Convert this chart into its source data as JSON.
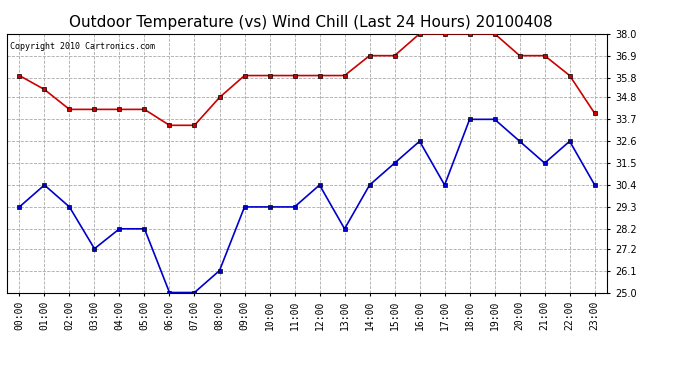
{
  "title": "Outdoor Temperature (vs) Wind Chill (Last 24 Hours) 20100408",
  "copyright": "Copyright 2010 Cartronics.com",
  "x_labels": [
    "00:00",
    "01:00",
    "02:00",
    "03:00",
    "04:00",
    "05:00",
    "06:00",
    "07:00",
    "08:00",
    "09:00",
    "10:00",
    "11:00",
    "12:00",
    "13:00",
    "14:00",
    "15:00",
    "16:00",
    "17:00",
    "18:00",
    "19:00",
    "20:00",
    "21:00",
    "22:00",
    "23:00"
  ],
  "temp_data": [
    35.9,
    35.2,
    34.2,
    34.2,
    34.2,
    34.2,
    33.4,
    33.4,
    34.8,
    35.9,
    35.9,
    35.9,
    35.9,
    35.9,
    36.9,
    36.9,
    38.0,
    38.0,
    38.0,
    38.0,
    36.9,
    36.9,
    35.9,
    34.0
  ],
  "wind_chill_data": [
    29.3,
    30.4,
    29.3,
    27.2,
    28.2,
    28.2,
    25.0,
    25.0,
    26.1,
    29.3,
    29.3,
    29.3,
    30.4,
    28.2,
    30.4,
    31.5,
    32.6,
    30.4,
    33.7,
    33.7,
    32.6,
    31.5,
    32.6,
    30.4
  ],
  "temp_color": "#cc0000",
  "wind_chill_color": "#0000cc",
  "ylim_min": 25.0,
  "ylim_max": 38.0,
  "yticks": [
    25.0,
    26.1,
    27.2,
    28.2,
    29.3,
    30.4,
    31.5,
    32.6,
    33.7,
    34.8,
    35.8,
    36.9,
    38.0
  ],
  "background_color": "#ffffff",
  "plot_bg_color": "#ffffff",
  "grid_color": "#aaaaaa",
  "title_fontsize": 11,
  "tick_fontsize": 7,
  "marker": "s",
  "marker_size": 2.5,
  "linewidth": 1.2
}
